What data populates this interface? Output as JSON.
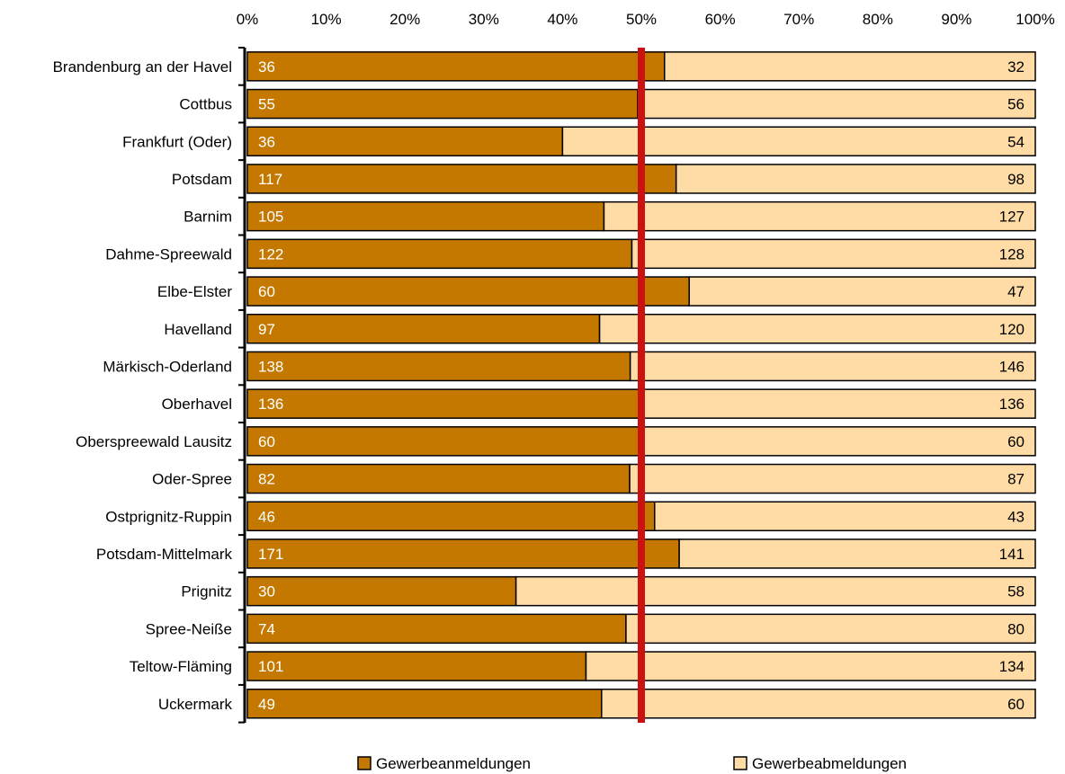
{
  "chart_data": {
    "type": "bar",
    "orientation": "horizontal",
    "stacked": "percent",
    "categories": [
      "Brandenburg an der Havel",
      "Cottbus",
      "Frankfurt (Oder)",
      "Potsdam",
      "Barnim",
      "Dahme-Spreewald",
      "Elbe-Elster",
      "Havelland",
      "Märkisch-Oderland",
      "Oberhavel",
      "Oberspreewald Lausitz",
      "Oder-Spree",
      "Ostprignitz-Ruppin",
      "Potsdam-Mittelmark",
      "Prignitz",
      "Spree-Neiße",
      "Teltow-Fläming",
      "Uckermark"
    ],
    "series": [
      {
        "name": "Gewerbeanmeldungen",
        "color": "#c47800",
        "values": [
          36,
          55,
          36,
          117,
          105,
          122,
          60,
          97,
          138,
          136,
          60,
          82,
          46,
          171,
          30,
          74,
          101,
          49
        ]
      },
      {
        "name": "Gewerbeabmeldungen",
        "color": "#ffdca5",
        "values": [
          32,
          56,
          54,
          98,
          127,
          128,
          47,
          120,
          146,
          136,
          60,
          87,
          43,
          141,
          58,
          80,
          134,
          60
        ]
      }
    ],
    "x_ticks": [
      "0%",
      "10%",
      "20%",
      "30%",
      "40%",
      "50%",
      "60%",
      "70%",
      "80%",
      "90%",
      "100%"
    ],
    "xlim": [
      0,
      100
    ],
    "x_axis_position": "top",
    "reference_line": {
      "value": 50,
      "color": "#cc1111"
    },
    "grid": false,
    "legend_position": "bottom"
  }
}
